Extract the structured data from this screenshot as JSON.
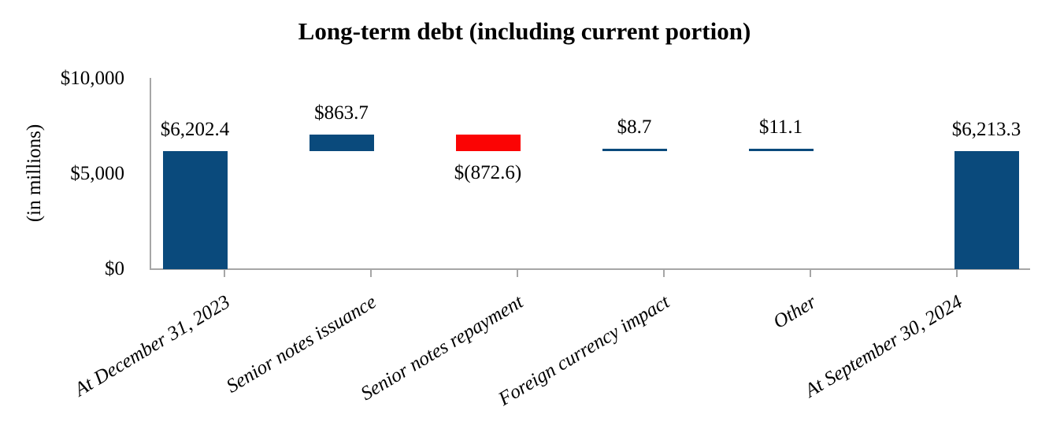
{
  "chart_data": {
    "type": "bar",
    "subtype": "waterfall",
    "title": "Long-term debt (including current portion)",
    "ylabel": "(in millions)",
    "xlabel": "",
    "ylim": [
      0,
      10000
    ],
    "grid": false,
    "legend": false,
    "y_ticks": [
      {
        "value": 0,
        "label": "$0"
      },
      {
        "value": 5000,
        "label": "$5,000"
      },
      {
        "value": 10000,
        "label": "$10,000"
      }
    ],
    "categories": [
      "At December 31, 2023",
      "Senior notes issuance",
      "Senior notes repayment",
      "Foreign currency impact",
      "Other",
      "At September 30, 2024"
    ],
    "bars": [
      {
        "category": "At December 31, 2023",
        "value": 6202.4,
        "value_label": "$6,202.4",
        "start": 0,
        "end": 6202.4,
        "kind": "total",
        "label_side": "above"
      },
      {
        "category": "Senior notes issuance",
        "value": 863.7,
        "value_label": "$863.7",
        "start": 6202.4,
        "end": 7066.1,
        "kind": "increase",
        "label_side": "above"
      },
      {
        "category": "Senior notes repayment",
        "value": -872.6,
        "value_label": "$(872.6)",
        "start": 7066.1,
        "end": 6193.5,
        "kind": "decrease",
        "label_side": "below"
      },
      {
        "category": "Foreign currency impact",
        "value": 8.7,
        "value_label": "$8.7",
        "start": 6193.5,
        "end": 6202.2,
        "kind": "increase",
        "label_side": "above"
      },
      {
        "category": "Other",
        "value": 11.1,
        "value_label": "$11.1",
        "start": 6202.2,
        "end": 6213.3,
        "kind": "increase",
        "label_side": "above"
      },
      {
        "category": "At September 30, 2024",
        "value": 6213.3,
        "value_label": "$6,213.3",
        "start": 0,
        "end": 6213.3,
        "kind": "total",
        "label_side": "above"
      }
    ],
    "colors": {
      "total": "#0a4a7c",
      "increase": "#0a4a7c",
      "decrease": "#fb0404",
      "axis": "#a6a6a6",
      "text": "#000000"
    }
  }
}
